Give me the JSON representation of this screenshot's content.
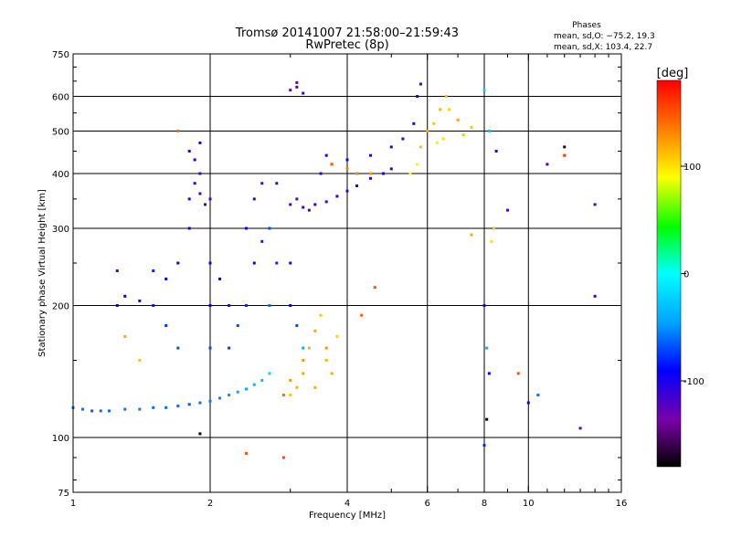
{
  "chart_data": {
    "type": "scatter",
    "title": "Tromsø 20141007 21:58:00–21:59:43",
    "subtitle": "RwPretec (8p)",
    "xlabel": "Frequency [MHz]",
    "ylabel": "Stationary phase Virtual Height [km]",
    "x_scale": "log",
    "y_scale": "log",
    "xlim": [
      1,
      16
    ],
    "ylim": [
      75,
      750
    ],
    "x_ticks": [
      1,
      2,
      4,
      6,
      8,
      10,
      16
    ],
    "x_major_grid": [
      2,
      4,
      6,
      8,
      10
    ],
    "y_ticks": [
      75,
      100,
      200,
      300,
      400,
      500,
      600,
      750
    ],
    "y_major_grid": [
      100,
      200,
      300,
      400,
      500,
      600
    ],
    "grid": true,
    "phase_info": {
      "heading": "Phases",
      "line_o": "mean, sd,O: −75.2, 19.3",
      "line_x": "mean, sd,X: 103.4, 22.7"
    },
    "colorbar": {
      "label": "[deg]",
      "min": -180,
      "max": 180,
      "ticks": [
        100,
        0,
        -100
      ]
    },
    "points": [
      {
        "x": 1.0,
        "y": 117,
        "c": -60
      },
      {
        "x": 1.05,
        "y": 116,
        "c": -60
      },
      {
        "x": 1.1,
        "y": 115,
        "c": -65
      },
      {
        "x": 1.15,
        "y": 115,
        "c": -60
      },
      {
        "x": 1.2,
        "y": 115,
        "c": -62
      },
      {
        "x": 1.3,
        "y": 116,
        "c": -58
      },
      {
        "x": 1.4,
        "y": 116,
        "c": -55
      },
      {
        "x": 1.5,
        "y": 117,
        "c": -60
      },
      {
        "x": 1.6,
        "y": 117,
        "c": -62
      },
      {
        "x": 1.7,
        "y": 118,
        "c": -60
      },
      {
        "x": 1.8,
        "y": 119,
        "c": -65
      },
      {
        "x": 1.9,
        "y": 120,
        "c": -60
      },
      {
        "x": 2.0,
        "y": 121,
        "c": -55
      },
      {
        "x": 2.1,
        "y": 123,
        "c": -55
      },
      {
        "x": 2.2,
        "y": 125,
        "c": -50
      },
      {
        "x": 2.3,
        "y": 127,
        "c": -40
      },
      {
        "x": 2.4,
        "y": 129,
        "c": -40
      },
      {
        "x": 2.5,
        "y": 132,
        "c": -35
      },
      {
        "x": 2.6,
        "y": 135,
        "c": -30
      },
      {
        "x": 2.7,
        "y": 140,
        "c": -20
      },
      {
        "x": 1.3,
        "y": 210,
        "c": -90
      },
      {
        "x": 1.4,
        "y": 205,
        "c": -95
      },
      {
        "x": 1.5,
        "y": 200,
        "c": -85
      },
      {
        "x": 1.5,
        "y": 240,
        "c": -80
      },
      {
        "x": 1.6,
        "y": 230,
        "c": -90
      },
      {
        "x": 1.6,
        "y": 180,
        "c": -75
      },
      {
        "x": 1.7,
        "y": 160,
        "c": -70
      },
      {
        "x": 1.7,
        "y": 250,
        "c": -90
      },
      {
        "x": 1.8,
        "y": 300,
        "c": -100
      },
      {
        "x": 1.8,
        "y": 350,
        "c": -110
      },
      {
        "x": 1.85,
        "y": 380,
        "c": -115
      },
      {
        "x": 1.9,
        "y": 360,
        "c": -120
      },
      {
        "x": 1.95,
        "y": 340,
        "c": -115
      },
      {
        "x": 1.9,
        "y": 400,
        "c": -110
      },
      {
        "x": 1.85,
        "y": 430,
        "c": -100
      },
      {
        "x": 1.9,
        "y": 470,
        "c": -95
      },
      {
        "x": 2.0,
        "y": 350,
        "c": -120
      },
      {
        "x": 2.0,
        "y": 250,
        "c": -95
      },
      {
        "x": 2.0,
        "y": 200,
        "c": -90
      },
      {
        "x": 2.0,
        "y": 160,
        "c": -70
      },
      {
        "x": 2.1,
        "y": 230,
        "c": -90
      },
      {
        "x": 2.2,
        "y": 200,
        "c": -85
      },
      {
        "x": 2.2,
        "y": 160,
        "c": -75
      },
      {
        "x": 2.3,
        "y": 180,
        "c": -70
      },
      {
        "x": 2.4,
        "y": 300,
        "c": -100
      },
      {
        "x": 2.4,
        "y": 200,
        "c": -80
      },
      {
        "x": 2.5,
        "y": 350,
        "c": -115
      },
      {
        "x": 2.5,
        "y": 250,
        "c": -90
      },
      {
        "x": 2.6,
        "y": 380,
        "c": -120
      },
      {
        "x": 2.6,
        "y": 280,
        "c": -80
      },
      {
        "x": 2.7,
        "y": 200,
        "c": -60
      },
      {
        "x": 2.7,
        "y": 300,
        "c": -70
      },
      {
        "x": 2.8,
        "y": 380,
        "c": -115
      },
      {
        "x": 2.8,
        "y": 250,
        "c": -80
      },
      {
        "x": 3.0,
        "y": 340,
        "c": -120
      },
      {
        "x": 3.1,
        "y": 350,
        "c": -125
      },
      {
        "x": 3.2,
        "y": 335,
        "c": -118
      },
      {
        "x": 3.3,
        "y": 330,
        "c": -120
      },
      {
        "x": 3.4,
        "y": 340,
        "c": -110
      },
      {
        "x": 3.6,
        "y": 345,
        "c": -115
      },
      {
        "x": 3.8,
        "y": 355,
        "c": -110
      },
      {
        "x": 4.0,
        "y": 365,
        "c": -115
      },
      {
        "x": 4.2,
        "y": 375,
        "c": -105
      },
      {
        "x": 4.5,
        "y": 390,
        "c": -110
      },
      {
        "x": 4.8,
        "y": 400,
        "c": -100
      },
      {
        "x": 5.0,
        "y": 410,
        "c": -110
      },
      {
        "x": 3.5,
        "y": 400,
        "c": -110
      },
      {
        "x": 3.6,
        "y": 440,
        "c": -105
      },
      {
        "x": 3.7,
        "y": 420,
        "c": -115
      },
      {
        "x": 4.0,
        "y": 430,
        "c": -100
      },
      {
        "x": 4.5,
        "y": 440,
        "c": -110
      },
      {
        "x": 5.0,
        "y": 460,
        "c": -105
      },
      {
        "x": 5.3,
        "y": 480,
        "c": -110
      },
      {
        "x": 5.6,
        "y": 520,
        "c": -105
      },
      {
        "x": 5.7,
        "y": 600,
        "c": -100
      },
      {
        "x": 5.8,
        "y": 640,
        "c": -110
      },
      {
        "x": 3.0,
        "y": 620,
        "c": -125
      },
      {
        "x": 3.1,
        "y": 630,
        "c": -120
      },
      {
        "x": 3.2,
        "y": 610,
        "c": -115
      },
      {
        "x": 3.1,
        "y": 645,
        "c": -130
      },
      {
        "x": 3.0,
        "y": 250,
        "c": -100
      },
      {
        "x": 3.0,
        "y": 200,
        "c": -90
      },
      {
        "x": 3.1,
        "y": 180,
        "c": -70
      },
      {
        "x": 3.2,
        "y": 160,
        "c": -40
      },
      {
        "x": 3.0,
        "y": 125,
        "c": 110
      },
      {
        "x": 3.1,
        "y": 130,
        "c": 115
      },
      {
        "x": 3.2,
        "y": 140,
        "c": 120
      },
      {
        "x": 3.2,
        "y": 150,
        "c": 125
      },
      {
        "x": 3.3,
        "y": 160,
        "c": 115
      },
      {
        "x": 3.4,
        "y": 175,
        "c": 120
      },
      {
        "x": 3.5,
        "y": 190,
        "c": 110
      },
      {
        "x": 3.6,
        "y": 160,
        "c": 125
      },
      {
        "x": 3.6,
        "y": 150,
        "c": 115
      },
      {
        "x": 3.7,
        "y": 140,
        "c": 120
      },
      {
        "x": 3.8,
        "y": 170,
        "c": 105
      },
      {
        "x": 3.4,
        "y": 130,
        "c": 118
      },
      {
        "x": 3.0,
        "y": 135,
        "c": 125
      },
      {
        "x": 2.9,
        "y": 125,
        "c": 140
      },
      {
        "x": 3.7,
        "y": 420,
        "c": 140
      },
      {
        "x": 4.0,
        "y": 410,
        "c": 135
      },
      {
        "x": 4.2,
        "y": 400,
        "c": 130
      },
      {
        "x": 4.5,
        "y": 400,
        "c": 125
      },
      {
        "x": 5.5,
        "y": 400,
        "c": 90
      },
      {
        "x": 5.7,
        "y": 420,
        "c": 85
      },
      {
        "x": 5.8,
        "y": 460,
        "c": 110
      },
      {
        "x": 6.0,
        "y": 500,
        "c": 120
      },
      {
        "x": 6.2,
        "y": 520,
        "c": 110
      },
      {
        "x": 6.4,
        "y": 560,
        "c": 115
      },
      {
        "x": 6.6,
        "y": 600,
        "c": 110
      },
      {
        "x": 6.7,
        "y": 560,
        "c": 105
      },
      {
        "x": 6.5,
        "y": 480,
        "c": 100
      },
      {
        "x": 6.3,
        "y": 470,
        "c": 95
      },
      {
        "x": 4.6,
        "y": 220,
        "c": 150
      },
      {
        "x": 4.3,
        "y": 190,
        "c": 145
      },
      {
        "x": 8.0,
        "y": 620,
        "c": -20
      },
      {
        "x": 8.2,
        "y": 500,
        "c": -30
      },
      {
        "x": 8.3,
        "y": 280,
        "c": 100
      },
      {
        "x": 8.4,
        "y": 300,
        "c": 110
      },
      {
        "x": 8.5,
        "y": 450,
        "c": -110
      },
      {
        "x": 9.0,
        "y": 330,
        "c": -120
      },
      {
        "x": 8.0,
        "y": 200,
        "c": -100
      },
      {
        "x": 8.1,
        "y": 160,
        "c": -40
      },
      {
        "x": 8.2,
        "y": 140,
        "c": -90
      },
      {
        "x": 8.1,
        "y": 110,
        "c": -175
      },
      {
        "x": 8.0,
        "y": 96,
        "c": -80
      },
      {
        "x": 7.0,
        "y": 530,
        "c": 120
      },
      {
        "x": 7.2,
        "y": 490,
        "c": 110
      },
      {
        "x": 7.5,
        "y": 510,
        "c": 110
      },
      {
        "x": 7.5,
        "y": 290,
        "c": 120
      },
      {
        "x": 9.5,
        "y": 140,
        "c": 150
      },
      {
        "x": 10.0,
        "y": 120,
        "c": -90
      },
      {
        "x": 10.5,
        "y": 125,
        "c": -60
      },
      {
        "x": 12.0,
        "y": 460,
        "c": -170
      },
      {
        "x": 12.0,
        "y": 440,
        "c": 160
      },
      {
        "x": 11.0,
        "y": 420,
        "c": -120
      },
      {
        "x": 14.0,
        "y": 340,
        "c": -120
      },
      {
        "x": 14.0,
        "y": 210,
        "c": -110
      },
      {
        "x": 13.0,
        "y": 105,
        "c": -125
      },
      {
        "x": 1.3,
        "y": 170,
        "c": 120
      },
      {
        "x": 1.4,
        "y": 150,
        "c": 110
      },
      {
        "x": 1.25,
        "y": 240,
        "c": -120
      },
      {
        "x": 1.25,
        "y": 200,
        "c": -90
      },
      {
        "x": 1.8,
        "y": 450,
        "c": -110
      },
      {
        "x": 1.7,
        "y": 500,
        "c": 140
      },
      {
        "x": 2.4,
        "y": 92,
        "c": 150
      },
      {
        "x": 2.9,
        "y": 90,
        "c": 155
      },
      {
        "x": 1.9,
        "y": 102,
        "c": -180
      }
    ]
  }
}
